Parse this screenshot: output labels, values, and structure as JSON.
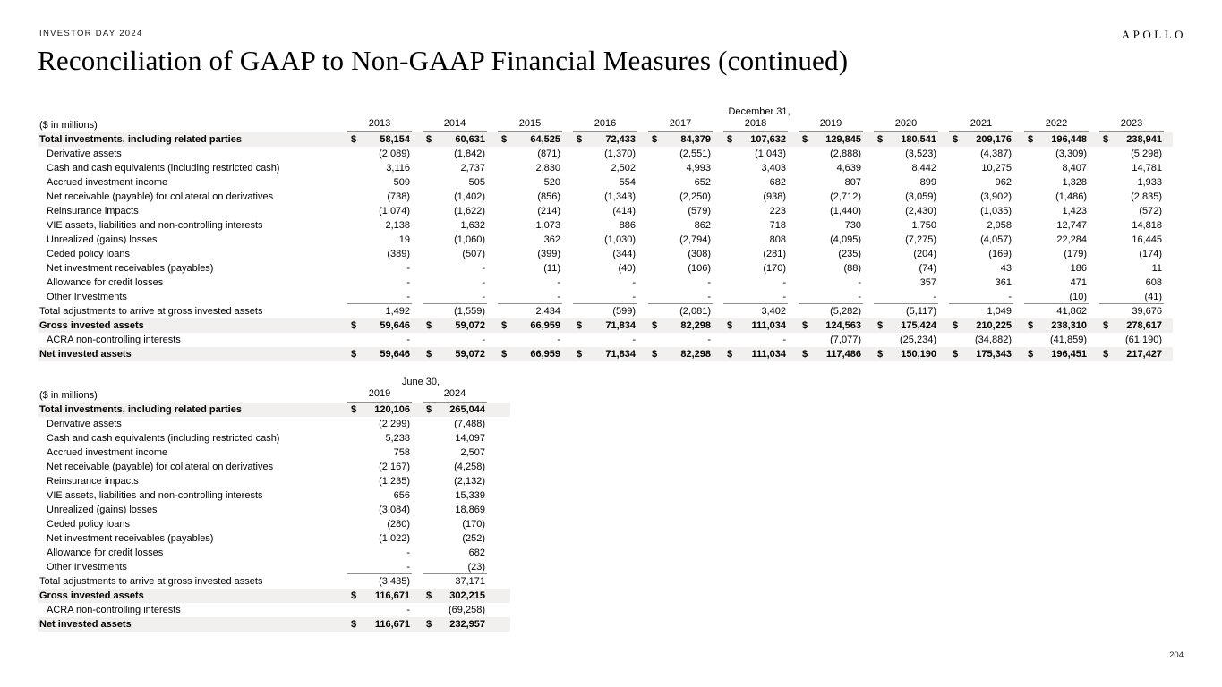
{
  "header": {
    "eyebrow": "INVESTOR DAY 2024",
    "brand": "APOLLO",
    "title": "Reconciliation of GAAP to Non-GAAP Financial Measures (continued)"
  },
  "footer": {
    "page_number": "204"
  },
  "colors": {
    "row_highlight": "#f1f0ee",
    "rule_gray": "#8e8e8e"
  },
  "table1": {
    "date_label": "December 31,",
    "unit_label": "($ in millions)",
    "currency": "$",
    "years": [
      "2013",
      "2014",
      "2015",
      "2016",
      "2017",
      "2018",
      "2019",
      "2020",
      "2021",
      "2022",
      "2023"
    ],
    "rows": [
      {
        "label": "Total investments, including related parties",
        "style": "total",
        "dollar": true,
        "values": [
          "58,154",
          "60,631",
          "64,525",
          "72,433",
          "84,379",
          "107,632",
          "129,845",
          "180,541",
          "209,176",
          "196,448",
          "238,941"
        ]
      },
      {
        "label": "Derivative assets",
        "style": "item",
        "values": [
          "(2,089)",
          "(1,842)",
          "(871)",
          "(1,370)",
          "(2,551)",
          "(1,043)",
          "(2,888)",
          "(3,523)",
          "(4,387)",
          "(3,309)",
          "(5,298)"
        ]
      },
      {
        "label": "Cash and cash equivalents (including restricted cash)",
        "style": "item",
        "values": [
          "3,116",
          "2,737",
          "2,830",
          "2,502",
          "4,993",
          "3,403",
          "4,639",
          "8,442",
          "10,275",
          "8,407",
          "14,781"
        ]
      },
      {
        "label": "Accrued investment income",
        "style": "item",
        "values": [
          "509",
          "505",
          "520",
          "554",
          "652",
          "682",
          "807",
          "899",
          "962",
          "1,328",
          "1,933"
        ]
      },
      {
        "label": "Net receivable (payable) for collateral on derivatives",
        "style": "item",
        "values": [
          "(738)",
          "(1,402)",
          "(856)",
          "(1,343)",
          "(2,250)",
          "(938)",
          "(2,712)",
          "(3,059)",
          "(3,902)",
          "(1,486)",
          "(2,835)"
        ]
      },
      {
        "label": "Reinsurance impacts",
        "style": "item",
        "values": [
          "(1,074)",
          "(1,622)",
          "(214)",
          "(414)",
          "(579)",
          "223",
          "(1,440)",
          "(2,430)",
          "(1,035)",
          "1,423",
          "(572)"
        ]
      },
      {
        "label": "VIE assets, liabilities and non-controlling interests",
        "style": "item",
        "values": [
          "2,138",
          "1,632",
          "1,073",
          "886",
          "862",
          "718",
          "730",
          "1,750",
          "2,958",
          "12,747",
          "14,818"
        ]
      },
      {
        "label": "Unrealized (gains) losses",
        "style": "item",
        "values": [
          "19",
          "(1,060)",
          "362",
          "(1,030)",
          "(2,794)",
          "808",
          "(4,095)",
          "(7,275)",
          "(4,057)",
          "22,284",
          "16,445"
        ]
      },
      {
        "label": "Ceded policy loans",
        "style": "item",
        "values": [
          "(389)",
          "(507)",
          "(399)",
          "(344)",
          "(308)",
          "(281)",
          "(235)",
          "(204)",
          "(169)",
          "(179)",
          "(174)"
        ]
      },
      {
        "label": "Net investment receivables (payables)",
        "style": "item",
        "values": [
          "-",
          "-",
          "(11)",
          "(40)",
          "(106)",
          "(170)",
          "(88)",
          "(74)",
          "43",
          "186",
          "11"
        ]
      },
      {
        "label": "Allowance for credit losses",
        "style": "item",
        "values": [
          "-",
          "-",
          "-",
          "-",
          "-",
          "-",
          "-",
          "357",
          "361",
          "471",
          "608"
        ]
      },
      {
        "label": "Other Investments",
        "style": "item",
        "underline": true,
        "values": [
          "-",
          "-",
          "-",
          "-",
          "-",
          "-",
          "-",
          "-",
          "-",
          "(10)",
          "(41)"
        ]
      },
      {
        "label": "Total adjustments to arrive at gross invested assets",
        "style": "subtotal",
        "values": [
          "1,492",
          "(1,559)",
          "2,434",
          "(599)",
          "(2,081)",
          "3,402",
          "(5,282)",
          "(5,117)",
          "1,049",
          "41,862",
          "39,676"
        ]
      },
      {
        "label": "Gross invested assets",
        "style": "total",
        "dollar": true,
        "values": [
          "59,646",
          "59,072",
          "66,959",
          "71,834",
          "82,298",
          "111,034",
          "124,563",
          "175,424",
          "210,225",
          "238,310",
          "278,617"
        ]
      },
      {
        "label": "ACRA non-controlling interests",
        "style": "item",
        "values": [
          "-",
          "-",
          "-",
          "-",
          "-",
          "-",
          "(7,077)",
          "(25,234)",
          "(34,882)",
          "(41,859)",
          "(61,190)"
        ]
      },
      {
        "label": "Net invested assets",
        "style": "total",
        "dollar": true,
        "values": [
          "59,646",
          "59,072",
          "66,959",
          "71,834",
          "82,298",
          "111,034",
          "117,486",
          "150,190",
          "175,343",
          "196,451",
          "217,427"
        ]
      }
    ]
  },
  "table2": {
    "date_label": "June 30,",
    "unit_label": "($ in millions)",
    "currency": "$",
    "years": [
      "2019",
      "2024"
    ],
    "rows": [
      {
        "label": "Total investments, including related parties",
        "style": "total",
        "dollar": true,
        "values": [
          "120,106",
          "265,044"
        ]
      },
      {
        "label": "Derivative assets",
        "style": "item",
        "values": [
          "(2,299)",
          "(7,488)"
        ]
      },
      {
        "label": "Cash and cash equivalents (including restricted cash)",
        "style": "item",
        "values": [
          "5,238",
          "14,097"
        ]
      },
      {
        "label": "Accrued investment income",
        "style": "item",
        "values": [
          "758",
          "2,507"
        ]
      },
      {
        "label": "Net receivable (payable) for collateral on derivatives",
        "style": "item",
        "values": [
          "(2,167)",
          "(4,258)"
        ]
      },
      {
        "label": "Reinsurance impacts",
        "style": "item",
        "values": [
          "(1,235)",
          "(2,132)"
        ]
      },
      {
        "label": "VIE assets, liabilities and non-controlling interests",
        "style": "item",
        "values": [
          "656",
          "15,339"
        ]
      },
      {
        "label": "Unrealized (gains) losses",
        "style": "item",
        "values": [
          "(3,084)",
          "18,869"
        ]
      },
      {
        "label": "Ceded policy loans",
        "style": "item",
        "values": [
          "(280)",
          "(170)"
        ]
      },
      {
        "label": "Net investment receivables (payables)",
        "style": "item",
        "values": [
          "(1,022)",
          "(252)"
        ]
      },
      {
        "label": "Allowance for credit losses",
        "style": "item",
        "values": [
          "-",
          "682"
        ]
      },
      {
        "label": "Other Investments",
        "style": "item",
        "underline": true,
        "values": [
          "-",
          "(23)"
        ]
      },
      {
        "label": "Total adjustments to arrive at gross invested assets",
        "style": "subtotal",
        "values": [
          "(3,435)",
          "37,171"
        ]
      },
      {
        "label": "Gross invested assets",
        "style": "total",
        "dollar": true,
        "values": [
          "116,671",
          "302,215"
        ]
      },
      {
        "label": "ACRA non-controlling interests",
        "style": "item",
        "values": [
          "-",
          "(69,258)"
        ]
      },
      {
        "label": "Net invested assets",
        "style": "total",
        "dollar": true,
        "values": [
          "116,671",
          "232,957"
        ]
      }
    ]
  }
}
